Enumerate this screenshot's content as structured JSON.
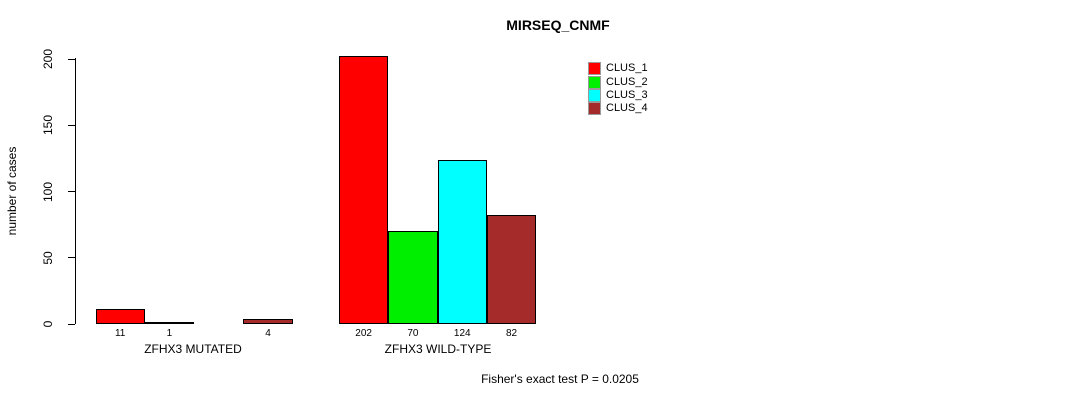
{
  "chart_data": {
    "type": "bar",
    "title": "MIRSEQ_CNMF",
    "ylabel": "number of cases",
    "ylim": [
      0,
      200
    ],
    "yticks": [
      0,
      50,
      100,
      150,
      200
    ],
    "grid": false,
    "categories": [
      "ZFHX3 MUTATED",
      "ZFHX3 WILD-TYPE"
    ],
    "series": [
      {
        "name": "CLUS_1",
        "color": "#ff0000",
        "values": [
          11,
          202
        ]
      },
      {
        "name": "CLUS_2",
        "color": "#00ee00",
        "values": [
          1,
          70
        ]
      },
      {
        "name": "CLUS_3",
        "color": "#00ffff",
        "values": [
          0,
          124
        ]
      },
      {
        "name": "CLUS_4",
        "color": "#a52a2a",
        "values": [
          4,
          82
        ]
      }
    ],
    "bar_value_labels": [
      [
        "11",
        "1",
        "",
        "4"
      ],
      [
        "202",
        "70",
        "124",
        "82"
      ]
    ],
    "legend": {
      "position": "top-right",
      "entries": [
        "CLUS_1",
        "CLUS_2",
        "CLUS_3",
        "CLUS_4"
      ]
    },
    "annotation": "Fisher's exact test P = 0.0205"
  }
}
